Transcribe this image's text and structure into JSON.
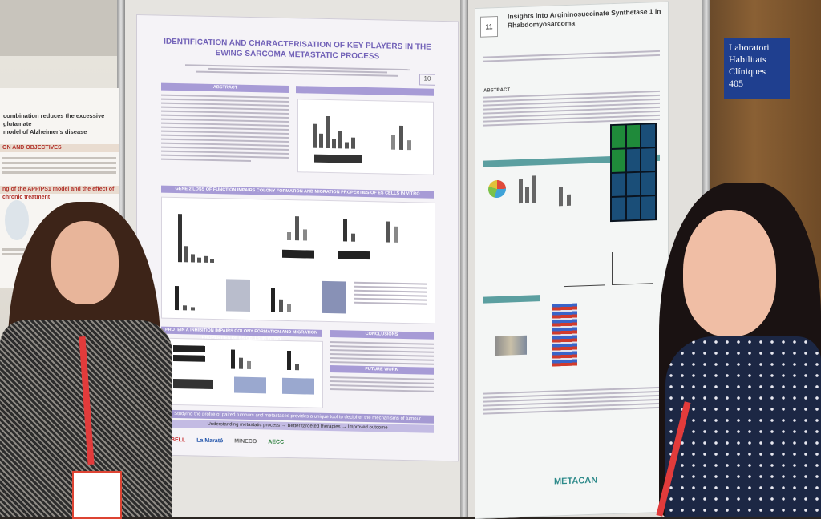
{
  "room_sign": {
    "line1": "Laboratori",
    "line2": "Habilitats",
    "line3": "Clíniques",
    "line4": "405"
  },
  "left_poster": {
    "title_fragment": "combination reduces the excessive glutamate",
    "subtitle_fragment": "model of Alzheimer's disease",
    "section1": "ON AND OBJECTIVES",
    "section2": "ng of the APP/PS1 model and the effect of chronic treatment"
  },
  "main_poster": {
    "title": "IDENTIFICATION AND CHARACTERISATION OF KEY PLAYERS IN THE EWING SARCOMA METASTATIC PROCESS",
    "number": "10",
    "abstract_heading": "ABSTRACT",
    "section_gene_loss": "GENE 2 LOSS OF FUNCTION IMPAIRS COLONY FORMATION AND MIGRATION PROPERTIES OF ES CELLS IN VITRO",
    "section_protein_a": "PROTEIN A INHIBITION IMPAIRS COLONY FORMATION AND MIGRATION PROPERTIES OF ES CELLS IN VITRO",
    "conclusions_heading": "CONCLUSIONS",
    "future_heading": "FUTURE WORK",
    "footer_line1": "Studying the profile of paired tumours and metastases provides a unique tool to decipher the mechanisms of tumour progression",
    "footer_line2": "Understanding metastatic process → Better targeted therapies → Improved outcome",
    "logos": [
      "IDIBELL",
      "La Marató",
      "MINECO",
      "AECC"
    ]
  },
  "right_poster": {
    "number": "11",
    "title": "Insights into Argininosuccinate Synthetase 1 in Rhabdomyosarcoma",
    "abstract_heading": "ABSTRACT",
    "footer_logo": "METACAN"
  }
}
